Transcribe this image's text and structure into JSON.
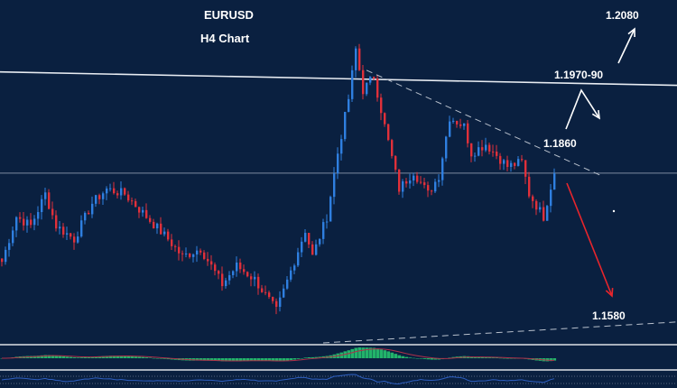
{
  "header": {
    "symbol": "EURUSD",
    "timeframe": "H4 Chart"
  },
  "annotations": {
    "target_up": "1.2080",
    "resistance": "1.1970-90",
    "pivot": "1.1860",
    "target_down": "1.1580"
  },
  "colors": {
    "background": "#0a2040",
    "bull": "#2f7fe0",
    "bear": "#e0303a",
    "histogram": "#22b36a",
    "signal": "#b0304a",
    "oscillator": "#2e5fc0",
    "up_arrow": "#ffffff",
    "down_arrow": "#e8252c"
  },
  "chart_data": {
    "type": "candlestick",
    "title": "EURUSD",
    "subtitle": "H4 Chart",
    "ylim": [
      1.1657,
      1.2067
    ],
    "grid": false,
    "close_path": {
      "bars": [
        0,
        4,
        8,
        12,
        15,
        20,
        25,
        29,
        34,
        40,
        46,
        50,
        55,
        61,
        65,
        70,
        76,
        80,
        84,
        86,
        90,
        93,
        96,
        98,
        100,
        103,
        106,
        110,
        114,
        118,
        121,
        124,
        128,
        130,
        134,
        140,
        144,
        146,
        150,
        153
      ],
      "closes": [
        1.1754,
        1.1808,
        1.1797,
        1.1835,
        1.1797,
        1.1781,
        1.1824,
        1.1841,
        1.1835,
        1.1808,
        1.1781,
        1.176,
        1.177,
        1.1727,
        1.1749,
        1.1733,
        1.1695,
        1.1743,
        1.1792,
        1.176,
        1.1808,
        1.1884,
        1.1949,
        1.2008,
        1.1959,
        1.1976,
        1.1916,
        1.1841,
        1.1862,
        1.1835,
        1.1857,
        1.1927,
        1.1916,
        1.1884,
        1.1895,
        1.1868,
        1.1873,
        1.1835,
        1.1808,
        1.1862
      ]
    },
    "horizontal_levels": [
      {
        "kind": "resistance-line",
        "from": 1.1981,
        "to": 1.1965,
        "style": "solid"
      },
      {
        "kind": "pivot-line",
        "price": 1.186,
        "style": "solid-gray"
      }
    ],
    "trendlines": [
      {
        "kind": "descending-resistance",
        "bar_from": 101,
        "price_from": 1.1983,
        "bar_to": 166,
        "price_to": 1.1857,
        "style": "dashed"
      },
      {
        "kind": "ascending-support",
        "bar_from": 89,
        "price_from": 1.1657,
        "bar_to": 187,
        "price_to": 1.1682,
        "style": "dashed"
      }
    ],
    "indicators": [
      "MACD histogram with signal line",
      "oscillator line"
    ]
  }
}
